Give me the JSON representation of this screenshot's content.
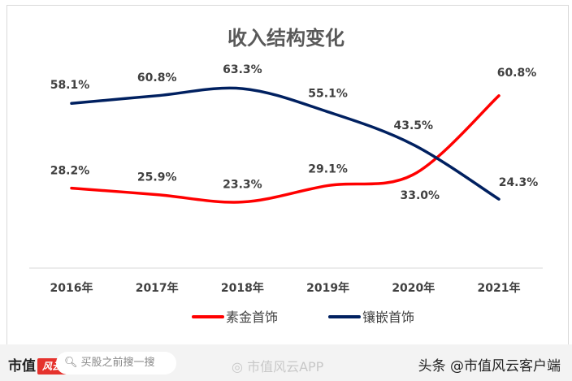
{
  "chart_data": {
    "type": "line",
    "title": "收入结构变化",
    "categories": [
      "2016年",
      "2017年",
      "2018年",
      "2019年",
      "2020年",
      "2021年"
    ],
    "series": [
      {
        "name": "素金首饰",
        "color": "#ff0000",
        "values": [
          28.2,
          25.9,
          23.3,
          29.1,
          33.0,
          60.8
        ],
        "labels": [
          "28.2%",
          "25.9%",
          "23.3%",
          "29.1%",
          "33.0%",
          "60.8%"
        ]
      },
      {
        "name": "镶嵌首饰",
        "color": "#002060",
        "values": [
          58.1,
          60.8,
          63.3,
          55.1,
          43.5,
          24.3
        ],
        "labels": [
          "58.1%",
          "60.8%",
          "63.3%",
          "55.1%",
          "43.5%",
          "24.3%"
        ]
      }
    ],
    "smooth": true,
    "grid": false,
    "legend": "bottom",
    "yaxis_visible": false
  },
  "footer": {
    "brand": "市值",
    "brand_logo": "风云",
    "search_placeholder": "买股之前搜一搜",
    "weibo": "市值风云APP",
    "toutiao": "头条 @市值风云客户端"
  }
}
